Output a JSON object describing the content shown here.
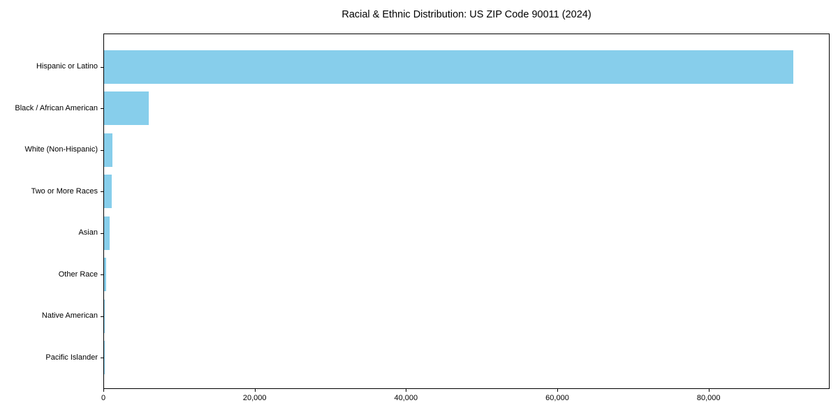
{
  "chart_data": {
    "type": "bar",
    "orientation": "horizontal",
    "title": "Racial & Ethnic Distribution: US ZIP Code 90011 (2024)",
    "xlabel": "",
    "ylabel": "",
    "categories": [
      "Hispanic or Latino",
      "Black / African American",
      "White (Non-Hispanic)",
      "Two or More Races",
      "Asian",
      "Other Race",
      "Native American",
      "Pacific Islander"
    ],
    "values": [
      91300,
      5900,
      1100,
      1050,
      700,
      280,
      80,
      25
    ],
    "xlim": [
      0,
      96000
    ],
    "xticks": [
      0,
      20000,
      40000,
      60000,
      80000
    ],
    "xtick_labels": [
      "0",
      "20,000",
      "40,000",
      "60,000",
      "80,000"
    ],
    "bar_color": "#87CEEB",
    "grid": false,
    "legend": null
  }
}
